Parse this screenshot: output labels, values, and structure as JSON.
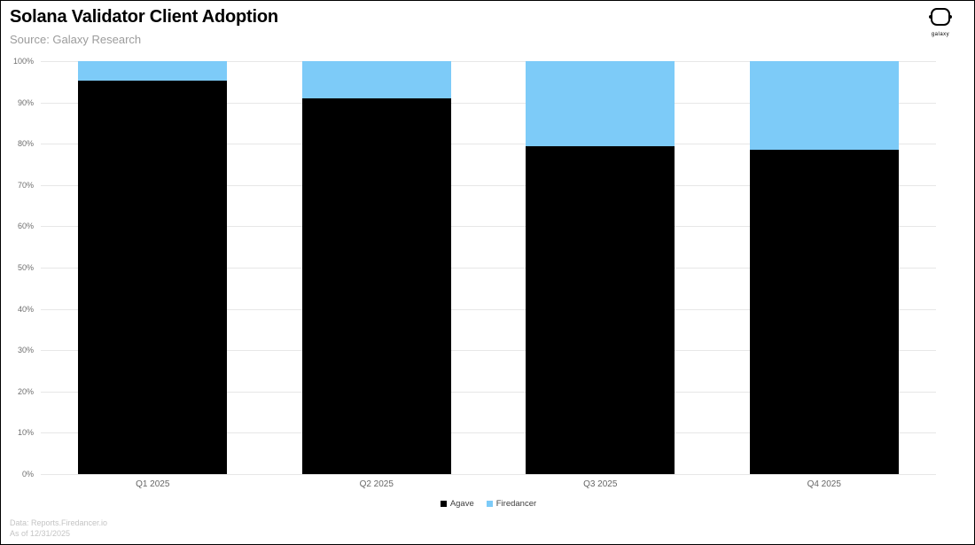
{
  "header": {
    "title": "Solana Validator Client Adoption",
    "subtitle": "Source: Galaxy Research",
    "logo_text": "galaxy"
  },
  "chart_data": {
    "type": "bar",
    "stacked": true,
    "title": "Solana Validator Client Adoption",
    "xlabel": "",
    "ylabel": "",
    "categories": [
      "Q1 2025",
      "Q2 2025",
      "Q3 2025",
      "Q4 2025"
    ],
    "series": [
      {
        "name": "Agave",
        "color": "#000000",
        "values": [
          95.2,
          91.0,
          79.4,
          78.6
        ]
      },
      {
        "name": "Firedancer",
        "color": "#7DCBF8",
        "values": [
          4.8,
          9.0,
          20.6,
          21.4
        ]
      }
    ],
    "ylim": [
      0,
      100
    ],
    "ytick_step": 10,
    "ytick_suffix": "%",
    "grid": true,
    "legend_position": "bottom"
  },
  "footer": {
    "line1": "Data: Reports.Firedancer.io",
    "line2": "As of 12/31/2025"
  },
  "colors": {
    "grid": "#e7e7e7",
    "axis_text": "#6f6f6f",
    "accent_blue": "#7DCBF8",
    "accent_black": "#000000"
  }
}
